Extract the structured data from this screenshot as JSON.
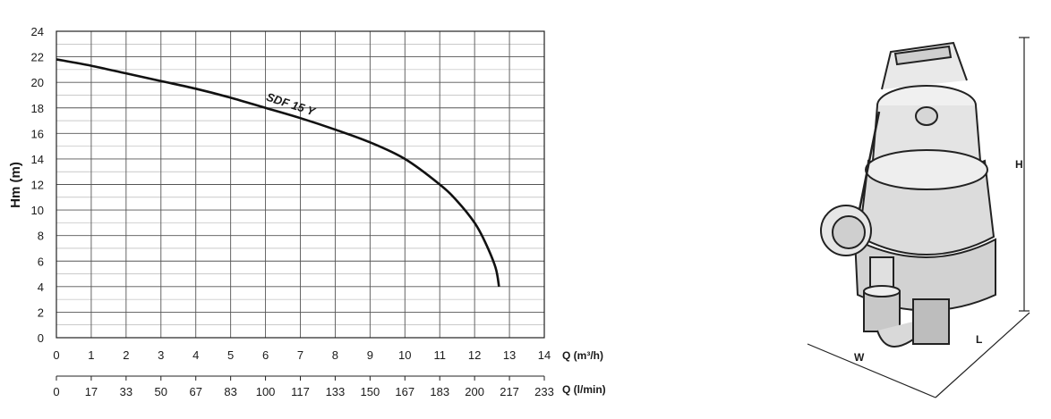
{
  "chart_data": {
    "type": "line",
    "title": "",
    "ylabel": "Hm (m)",
    "xlabel": "Q (m³/h)",
    "x2label": "Q (l/min)",
    "xlim": [
      0,
      14
    ],
    "ylim": [
      0,
      24
    ],
    "x_ticks": [
      0,
      1,
      2,
      3,
      4,
      5,
      6,
      7,
      8,
      9,
      10,
      11,
      12,
      13,
      14
    ],
    "x2_ticks": [
      0,
      17,
      33,
      50,
      67,
      83,
      100,
      117,
      133,
      150,
      167,
      183,
      200,
      217,
      233
    ],
    "y_ticks": [
      0,
      2,
      4,
      6,
      8,
      10,
      12,
      14,
      16,
      18,
      20,
      22,
      24
    ],
    "grid": true,
    "series": [
      {
        "name": "SDF 15 Y",
        "color": "#111111",
        "x": [
          0,
          1,
          2,
          3,
          4,
          5,
          6,
          7,
          8,
          9,
          10,
          11,
          11.5,
          12,
          12.3,
          12.6,
          12.7
        ],
        "y": [
          21.8,
          21.3,
          20.7,
          20.1,
          19.5,
          18.8,
          18.0,
          17.2,
          16.3,
          15.3,
          14.0,
          12.0,
          10.7,
          9.0,
          7.5,
          5.5,
          4.0
        ]
      }
    ]
  },
  "diagram": {
    "dimension_labels": {
      "height": "H",
      "length": "L",
      "width": "W"
    }
  }
}
